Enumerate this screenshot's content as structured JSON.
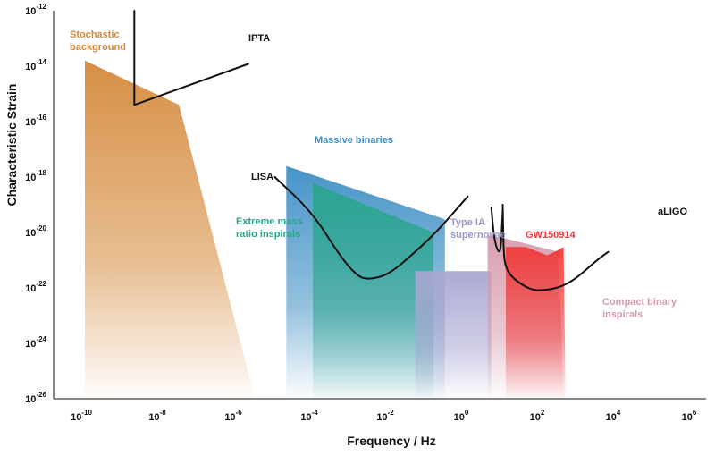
{
  "chart_data": {
    "type": "area",
    "xlabel": "Frequency / Hz",
    "ylabel": "Characteristic Strain",
    "xscale": "log",
    "yscale": "log",
    "xlim": [
      1e-10,
      1000000.0
    ],
    "ylim": [
      1e-26,
      1e-12
    ],
    "x_ticks": [
      {
        "base": "10",
        "exp": "-10",
        "value": 1e-10
      },
      {
        "base": "10",
        "exp": "-8",
        "value": 1e-08
      },
      {
        "base": "10",
        "exp": "-6",
        "value": 1e-06
      },
      {
        "base": "10",
        "exp": "-4",
        "value": 0.0001
      },
      {
        "base": "10",
        "exp": "-2",
        "value": 0.01
      },
      {
        "base": "10",
        "exp": "0",
        "value": 1
      },
      {
        "base": "10",
        "exp": "2",
        "value": 100.0
      },
      {
        "base": "10",
        "exp": "4",
        "value": 10000.0
      },
      {
        "base": "10",
        "exp": "6",
        "value": 1000000.0
      }
    ],
    "y_ticks": [
      {
        "base": "10",
        "exp": "-12",
        "value": 1e-12
      },
      {
        "base": "10",
        "exp": "-14",
        "value": 1e-14
      },
      {
        "base": "10",
        "exp": "-16",
        "value": 1e-16
      },
      {
        "base": "10",
        "exp": "-18",
        "value": 1e-18
      },
      {
        "base": "10",
        "exp": "-20",
        "value": 1e-20
      },
      {
        "base": "10",
        "exp": "-22",
        "value": 1e-22
      },
      {
        "base": "10",
        "exp": "-24",
        "value": 1e-24
      },
      {
        "base": "10",
        "exp": "-26",
        "value": 1e-26
      }
    ],
    "regions": [
      {
        "name": "Stochastic background",
        "color": "#d4893a",
        "points": [
          [
            1e-10,
            1.6e-14
          ],
          [
            3e-08,
            4e-16
          ],
          [
            3e-06,
            1e-26
          ],
          [
            1e-10,
            1e-26
          ]
        ]
      },
      {
        "name": "Massive binaries",
        "color": "#3d8ec4",
        "points": [
          [
            2e-05,
            2.5e-18
          ],
          [
            0.3,
            3e-20
          ],
          [
            0.3,
            1e-26
          ],
          [
            2e-05,
            1e-26
          ]
        ]
      },
      {
        "name": "Extreme mass ratio inspirals",
        "color": "#2aa58e",
        "points": [
          [
            0.0001,
            6e-19
          ],
          [
            0.15,
            1e-20
          ],
          [
            0.15,
            1e-26
          ],
          [
            0.0001,
            1e-26
          ]
        ]
      },
      {
        "name": "Type IA supernovae",
        "color": "#a9a6d2",
        "points": [
          [
            0.05,
            4e-22
          ],
          [
            5,
            4e-22
          ],
          [
            5,
            1e-26
          ],
          [
            0.05,
            1e-26
          ]
        ]
      },
      {
        "name": "Compact binary inspirals",
        "color": "#d69aac",
        "points": [
          [
            4,
            8e-21
          ],
          [
            12,
            6e-21
          ],
          [
            300,
            2e-21
          ],
          [
            400,
            1e-26
          ],
          [
            4,
            1e-26
          ]
        ]
      },
      {
        "name": "GW150914",
        "color": "#f03a3a",
        "points": [
          [
            12,
            3e-21
          ],
          [
            40,
            3e-21
          ],
          [
            150,
            1.5e-21
          ],
          [
            300,
            2.4e-21
          ],
          [
            400,
            3e-21
          ],
          [
            450,
            1e-26
          ],
          [
            12,
            1e-26
          ]
        ]
      }
    ],
    "sensitivity_curves": [
      {
        "name": "IPTA",
        "points": [
          [
            2e-09,
            1e-12
          ],
          [
            2e-09,
            4e-16
          ],
          [
            2e-06,
            1.2e-14
          ]
        ]
      },
      {
        "name": "LISA",
        "points": [
          [
            1e-05,
            1e-18
          ],
          [
            0.0001,
            5e-20
          ],
          [
            0.0005,
            1.5e-21
          ],
          [
            0.0015,
            2.6e-22
          ],
          [
            0.003,
            2e-22
          ],
          [
            0.01,
            3e-22
          ],
          [
            0.05,
            2e-21
          ],
          [
            0.2,
            1.2e-20
          ],
          [
            1.2,
            2e-19
          ]
        ]
      },
      {
        "name": "aLIGO",
        "points": [
          [
            10,
            1e-19
          ],
          [
            10.5,
            2e-21
          ],
          [
            12,
            5e-22
          ],
          [
            20,
            2e-22
          ],
          [
            50,
            9e-23
          ],
          [
            100,
            8e-23
          ],
          [
            300,
            1e-22
          ],
          [
            800,
            2e-22
          ],
          [
            3000,
            1e-21
          ],
          [
            6000,
            2e-21
          ]
        ]
      },
      {
        "name": "",
        "points": [
          [
            5,
            8e-20
          ],
          [
            6,
            5e-21
          ],
          [
            8,
            1.7e-21
          ],
          [
            9,
            3e-21
          ],
          [
            10,
            6e-20
          ]
        ]
      }
    ],
    "labels": {
      "stochastic": "Stochastic\nbackground",
      "ipta": "IPTA",
      "lisa": "LISA",
      "massive": "Massive binaries",
      "emri": "Extreme mass\nratio inspirals",
      "typeia": "Type IA\nsupernovae",
      "gw150914": "GW150914",
      "aligo": "aLIGO",
      "compact": "Compact binary\ninspirals"
    },
    "colors": {
      "stochastic": "#d4893a",
      "massive": "#3d8ec4",
      "emri": "#2aa58e",
      "typeia": "#a9a6d2",
      "gw150914": "#f03a3a",
      "compact": "#d69aac",
      "curve": "#111111"
    },
    "grid": false,
    "legend": "none"
  }
}
